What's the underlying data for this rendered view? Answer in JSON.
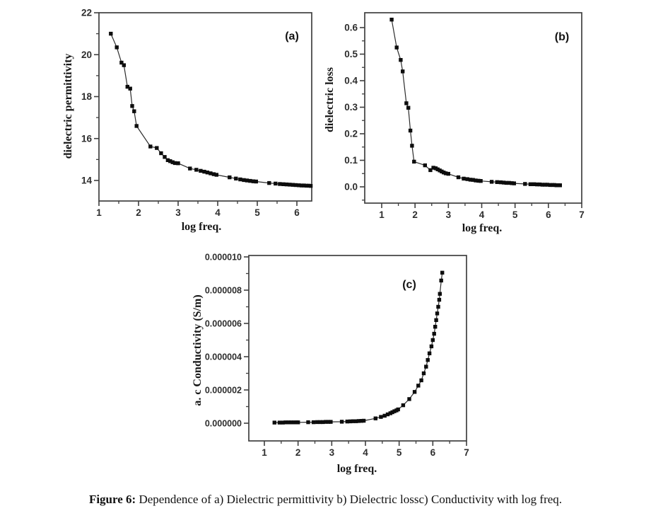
{
  "styles": {
    "background": "#ffffff",
    "axis_color": "#3f3f3f",
    "line_color": "#2b2b2b",
    "marker_color": "#0d0d0d",
    "tick_label_color": "#2d2d2d",
    "text_color": "#111111"
  },
  "caption": {
    "label": "Figure 6:",
    "text": " Dependence of a) Dielectric permittivity b) Dielectric lossc) Conductivity with log freq."
  },
  "chart_data": [
    {
      "id": "a",
      "type": "line",
      "annotation": "(a)",
      "xlabel": "log freq.",
      "ylabel": "dielectric permittivity",
      "marker": "square",
      "legend": "none",
      "grid": false,
      "xlim": [
        1.0,
        6.38
      ],
      "ylim": [
        13.0,
        22.0
      ],
      "x_ticks": [
        1,
        2,
        3,
        4,
        5,
        6
      ],
      "x_tick_labels": [
        "1",
        "2",
        "3",
        "4",
        "5",
        "6"
      ],
      "x_minor_ticks": [
        1.5,
        2.5,
        3.5,
        4.5,
        5.5
      ],
      "y_ticks": [
        22,
        20,
        18,
        16,
        14
      ],
      "y_tick_labels": [
        "22",
        "20",
        "18",
        "16",
        "14"
      ],
      "y_minor_ticks": [
        21,
        19,
        17,
        15
      ],
      "points": [
        [
          1.3,
          21.0
        ],
        [
          1.45,
          20.35
        ],
        [
          1.57,
          19.62
        ],
        [
          1.63,
          19.5
        ],
        [
          1.72,
          18.47
        ],
        [
          1.79,
          18.38
        ],
        [
          1.84,
          17.55
        ],
        [
          1.89,
          17.3
        ],
        [
          1.95,
          16.6
        ],
        [
          2.3,
          15.62
        ],
        [
          2.46,
          15.55
        ],
        [
          2.57,
          15.3
        ],
        [
          2.66,
          15.12
        ],
        [
          2.74,
          14.97
        ],
        [
          2.8,
          14.92
        ],
        [
          2.86,
          14.87
        ],
        [
          2.92,
          14.83
        ],
        [
          3.0,
          14.82
        ],
        [
          3.3,
          14.57
        ],
        [
          3.46,
          14.51
        ],
        [
          3.57,
          14.46
        ],
        [
          3.66,
          14.42
        ],
        [
          3.74,
          14.38
        ],
        [
          3.82,
          14.34
        ],
        [
          3.9,
          14.3
        ],
        [
          3.97,
          14.27
        ],
        [
          4.3,
          14.15
        ],
        [
          4.46,
          14.09
        ],
        [
          4.57,
          14.05
        ],
        [
          4.66,
          14.02
        ],
        [
          4.74,
          14.0
        ],
        [
          4.82,
          13.98
        ],
        [
          4.9,
          13.96
        ],
        [
          4.97,
          13.95
        ],
        [
          5.3,
          13.88
        ],
        [
          5.46,
          13.85
        ],
        [
          5.57,
          13.83
        ],
        [
          5.66,
          13.82
        ],
        [
          5.74,
          13.81
        ],
        [
          5.82,
          13.8
        ],
        [
          5.9,
          13.79
        ],
        [
          5.97,
          13.78
        ],
        [
          6.05,
          13.77
        ],
        [
          6.12,
          13.76
        ],
        [
          6.18,
          13.76
        ],
        [
          6.24,
          13.75
        ],
        [
          6.3,
          13.75
        ],
        [
          6.35,
          13.74
        ]
      ]
    },
    {
      "id": "b",
      "type": "line",
      "annotation": "(b)",
      "xlabel": "log freq.",
      "ylabel": "dielectric loss",
      "marker": "square",
      "legend": "none",
      "grid": false,
      "xlim": [
        0.49,
        7.0
      ],
      "ylim": [
        -0.06,
        0.66
      ],
      "x_ticks": [
        1,
        2,
        3,
        4,
        5,
        6,
        7
      ],
      "x_tick_labels": [
        "1",
        "2",
        "3",
        "4",
        "5",
        "6",
        "7"
      ],
      "x_minor_ticks": [
        1.5,
        2.5,
        3.5,
        4.5,
        5.5,
        6.5
      ],
      "y_ticks": [
        0.6,
        0.5,
        0.4,
        0.3,
        0.2,
        0.1,
        0.0
      ],
      "y_tick_labels": [
        "0.6",
        "0.5",
        "0.4",
        "0.3",
        "0.2",
        "0.1",
        "0.0"
      ],
      "y_minor_ticks": [
        0.55,
        0.45,
        0.35,
        0.25,
        0.15,
        0.05,
        -0.05
      ],
      "points": [
        [
          1.3,
          0.63
        ],
        [
          1.45,
          0.525
        ],
        [
          1.57,
          0.478
        ],
        [
          1.63,
          0.435
        ],
        [
          1.74,
          0.315
        ],
        [
          1.8,
          0.298
        ],
        [
          1.86,
          0.212
        ],
        [
          1.91,
          0.155
        ],
        [
          1.97,
          0.095
        ],
        [
          2.3,
          0.081
        ],
        [
          2.46,
          0.063
        ],
        [
          2.55,
          0.072
        ],
        [
          2.62,
          0.07
        ],
        [
          2.68,
          0.066
        ],
        [
          2.74,
          0.062
        ],
        [
          2.8,
          0.058
        ],
        [
          2.86,
          0.054
        ],
        [
          2.92,
          0.051
        ],
        [
          3.0,
          0.049
        ],
        [
          3.3,
          0.036
        ],
        [
          3.46,
          0.031
        ],
        [
          3.57,
          0.029
        ],
        [
          3.66,
          0.027
        ],
        [
          3.74,
          0.026
        ],
        [
          3.82,
          0.024
        ],
        [
          3.9,
          0.023
        ],
        [
          3.97,
          0.022
        ],
        [
          4.3,
          0.019
        ],
        [
          4.46,
          0.018
        ],
        [
          4.57,
          0.017
        ],
        [
          4.66,
          0.016
        ],
        [
          4.74,
          0.015
        ],
        [
          4.82,
          0.015
        ],
        [
          4.9,
          0.014
        ],
        [
          4.97,
          0.013
        ],
        [
          5.3,
          0.011
        ],
        [
          5.46,
          0.01
        ],
        [
          5.57,
          0.01
        ],
        [
          5.66,
          0.009
        ],
        [
          5.74,
          0.009
        ],
        [
          5.82,
          0.008
        ],
        [
          5.9,
          0.008
        ],
        [
          5.97,
          0.008
        ],
        [
          6.05,
          0.007
        ],
        [
          6.12,
          0.007
        ],
        [
          6.18,
          0.007
        ],
        [
          6.24,
          0.006
        ],
        [
          6.3,
          0.006
        ],
        [
          6.35,
          0.006
        ]
      ]
    },
    {
      "id": "c",
      "type": "line",
      "annotation": "(c)",
      "xlabel": "log freq.",
      "ylabel": "a. c  Conductivity (S/m)",
      "marker": "square",
      "legend": "none",
      "grid": false,
      "xlim": [
        0.49,
        7.0
      ],
      "ylim": [
        -1.06e-06,
        1.003e-05
      ],
      "x_ticks": [
        1,
        2,
        3,
        4,
        5,
        6,
        7
      ],
      "x_tick_labels": [
        "1",
        "2",
        "3",
        "4",
        "5",
        "6",
        "7"
      ],
      "x_minor_ticks": [
        1.5,
        2.5,
        3.5,
        4.5,
        5.5,
        6.5
      ],
      "y_ticks": [
        1e-05,
        8e-06,
        6e-06,
        4e-06,
        2e-06,
        0
      ],
      "y_tick_labels": [
        "0.000010",
        "0.000008",
        "0.000006",
        "0.000004",
        "0.000002",
        "0.000000"
      ],
      "y_minor_ticks": [
        9e-06,
        7e-06,
        5e-06,
        3e-06,
        1e-06
      ],
      "points": [
        [
          1.3,
          4e-08
        ],
        [
          1.45,
          4e-08
        ],
        [
          1.55,
          4e-08
        ],
        [
          1.63,
          5e-08
        ],
        [
          1.72,
          5e-08
        ],
        [
          1.8,
          5e-08
        ],
        [
          1.88,
          5e-08
        ],
        [
          1.95,
          5e-08
        ],
        [
          2.0,
          5e-08
        ],
        [
          2.3,
          6e-08
        ],
        [
          2.46,
          6e-08
        ],
        [
          2.57,
          7e-08
        ],
        [
          2.66,
          7e-08
        ],
        [
          2.74,
          7e-08
        ],
        [
          2.82,
          8e-08
        ],
        [
          2.9,
          8e-08
        ],
        [
          2.97,
          8e-08
        ],
        [
          3.3,
          9e-08
        ],
        [
          3.46,
          1e-07
        ],
        [
          3.55,
          1.1e-07
        ],
        [
          3.63,
          1.2e-07
        ],
        [
          3.72,
          1.2e-07
        ],
        [
          3.8,
          1.3e-07
        ],
        [
          3.88,
          1.4e-07
        ],
        [
          3.95,
          1.5e-07
        ],
        [
          4.3,
          2.9e-07
        ],
        [
          4.46,
          3.8e-07
        ],
        [
          4.57,
          4.5e-07
        ],
        [
          4.66,
          5.3e-07
        ],
        [
          4.74,
          6e-07
        ],
        [
          4.8,
          6.6e-07
        ],
        [
          4.86,
          7.2e-07
        ],
        [
          4.92,
          7.7e-07
        ],
        [
          4.97,
          8.3e-07
        ],
        [
          5.12,
          1.08e-06
        ],
        [
          5.3,
          1.45e-06
        ],
        [
          5.46,
          1.88e-06
        ],
        [
          5.57,
          2.26e-06
        ],
        [
          5.66,
          2.58e-06
        ],
        [
          5.73,
          3e-06
        ],
        [
          5.8,
          3.4e-06
        ],
        [
          5.85,
          3.8e-06
        ],
        [
          5.9,
          4.2e-06
        ],
        [
          5.96,
          4.62e-06
        ],
        [
          6.0,
          5e-06
        ],
        [
          6.04,
          5.38e-06
        ],
        [
          6.07,
          5.8e-06
        ],
        [
          6.1,
          6.2e-06
        ],
        [
          6.13,
          6.6e-06
        ],
        [
          6.16,
          7e-06
        ],
        [
          6.19,
          7.42e-06
        ],
        [
          6.21,
          7.78e-06
        ],
        [
          6.25,
          8.58e-06
        ],
        [
          6.28,
          9.05e-06
        ]
      ]
    }
  ]
}
